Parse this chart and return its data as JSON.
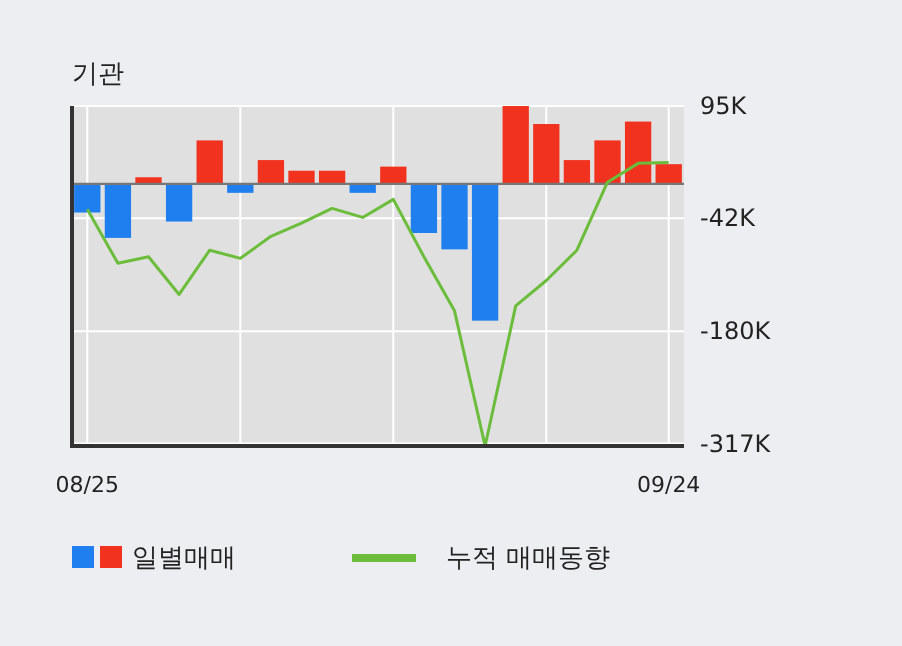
{
  "chart_data": {
    "type": "bar",
    "title": "기관",
    "categories": [
      "08/25",
      null,
      null,
      null,
      null,
      null,
      null,
      null,
      null,
      null,
      null,
      null,
      null,
      null,
      null,
      null,
      null,
      null,
      null,
      "09/24"
    ],
    "series": [
      {
        "name": "일별매매",
        "colors": [
          "#1f7fef",
          "#1f7fef",
          "#f0321e",
          "#1f7fef",
          "#f0321e",
          "#1f7fef",
          "#f0321e",
          "#f0321e",
          "#f0321e",
          "#1f7fef",
          "#f0321e",
          "#1f7fef",
          "#1f7fef",
          "#1f7fef",
          "#f0321e",
          "#f0321e",
          "#f0321e",
          "#f0321e",
          "#f0321e",
          "#f0321e"
        ],
        "values": [
          -35,
          -66,
          8,
          -46,
          53,
          -11,
          29,
          16,
          16,
          -11,
          21,
          -60,
          -80,
          -167,
          95,
          73,
          29,
          53,
          76,
          24
        ]
      },
      {
        "name": "누적 매매동향",
        "type": "line",
        "color": "#6cbd3c",
        "values": [
          -31,
          -97,
          -89,
          -135,
          -81,
          -91,
          -64,
          -48,
          -30,
          -41,
          -19,
          -89,
          -155,
          -320,
          -149,
          -118,
          -81,
          2,
          25,
          26
        ]
      }
    ],
    "ylim": [
      -320,
      95
    ],
    "yticks": [
      {
        "value": 95,
        "label": "95K"
      },
      {
        "value": -42,
        "label": "-42K"
      },
      {
        "value": -180,
        "label": "-180K"
      },
      {
        "value": -317,
        "label": "-317K"
      }
    ],
    "grid": true,
    "legend": "bottom"
  }
}
